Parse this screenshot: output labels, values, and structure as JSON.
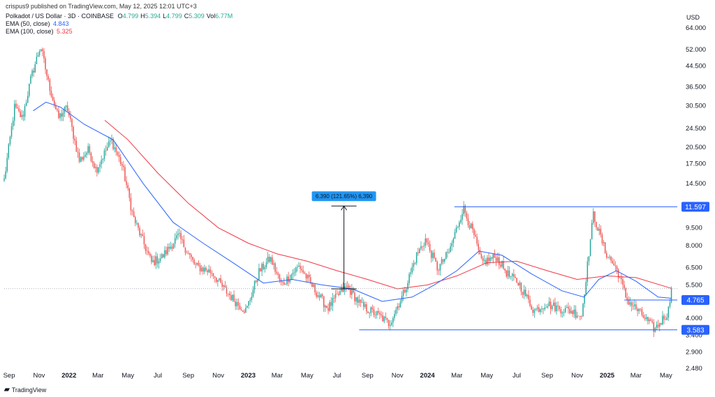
{
  "header": {
    "publisher": "crispus9 published on TradingView.com, May 12, 2025 12:01 UTC+3",
    "symbol": "Polkadot / US Dollar · 3D · COINBASE",
    "ohlc": [
      {
        "label": "O",
        "value": "4.799"
      },
      {
        "label": "H",
        "value": "5.394"
      },
      {
        "label": "L",
        "value": "4.799"
      },
      {
        "label": "C",
        "value": "5.309"
      },
      {
        "label": "Vol",
        "value": "6.77M"
      }
    ],
    "ema50_label": "EMA (50, close)",
    "ema50_value": "4.843",
    "ema100_label": "EMA (100, close)",
    "ema100_value": "5.325",
    "currency": "USD"
  },
  "footer": {
    "logo_text": "TradingView"
  },
  "colors": {
    "up": "#26a69a",
    "down": "#ef5350",
    "ema50": "#2962ff",
    "ema100": "#f23645",
    "hline": "#2962ff",
    "tag": "#2962ff",
    "measure_tag": "#2196f3"
  },
  "chart_data": {
    "type": "candlestick",
    "y_scale": "log",
    "ylim": [
      2.48,
      64.0
    ],
    "y_ticks": [
      "64.000",
      "52.000",
      "44.500",
      "36.500",
      "30.500",
      "24.500",
      "20.500",
      "17.500",
      "14.500",
      "9.500",
      "8.000",
      "6.500",
      "5.500",
      "4.000",
      "3.400",
      "2.900",
      "2.480"
    ],
    "x_ticks": [
      "Sep",
      "Nov",
      "2022",
      "Mar",
      "May",
      "Jul",
      "Sep",
      "Nov",
      "2023",
      "Mar",
      "May",
      "Jul",
      "Sep",
      "Nov",
      "2024",
      "Mar",
      "May",
      "Jul",
      "Sep",
      "Nov",
      "2025",
      "Mar",
      "May"
    ],
    "x_range": [
      "2021-08-22",
      "2025-05-24"
    ],
    "price_key_points": [
      [
        "2021-08-22",
        15.0
      ],
      [
        "2021-09-12",
        30.0
      ],
      [
        "2021-09-28",
        27.0
      ],
      [
        "2021-10-16",
        40.0
      ],
      [
        "2021-11-04",
        54.0
      ],
      [
        "2021-11-20",
        38.0
      ],
      [
        "2021-12-10",
        27.0
      ],
      [
        "2021-12-28",
        30.0
      ],
      [
        "2022-01-22",
        18.0
      ],
      [
        "2022-02-10",
        20.0
      ],
      [
        "2022-02-25",
        16.5
      ],
      [
        "2022-03-28",
        22.0
      ],
      [
        "2022-04-20",
        17.0
      ],
      [
        "2022-05-12",
        10.5
      ],
      [
        "2022-06-18",
        6.8
      ],
      [
        "2022-07-10",
        7.2
      ],
      [
        "2022-08-12",
        8.8
      ],
      [
        "2022-09-15",
        6.6
      ],
      [
        "2022-10-20",
        6.2
      ],
      [
        "2022-11-09",
        5.4
      ],
      [
        "2022-12-10",
        4.6
      ],
      [
        "2022-12-28",
        4.3
      ],
      [
        "2023-01-22",
        6.2
      ],
      [
        "2023-02-15",
        7.1
      ],
      [
        "2023-03-10",
        5.5
      ],
      [
        "2023-04-15",
        6.6
      ],
      [
        "2023-05-15",
        5.3
      ],
      [
        "2023-06-12",
        4.4
      ],
      [
        "2023-07-10",
        5.2
      ],
      [
        "2023-07-22",
        5.4
      ],
      [
        "2023-08-20",
        4.5
      ],
      [
        "2023-09-25",
        4.1
      ],
      [
        "2023-10-15",
        3.8
      ],
      [
        "2023-11-12",
        5.0
      ],
      [
        "2023-12-10",
        7.3
      ],
      [
        "2023-12-28",
        8.5
      ],
      [
        "2024-01-22",
        6.4
      ],
      [
        "2024-02-15",
        7.6
      ],
      [
        "2024-03-14",
        11.5
      ],
      [
        "2024-04-05",
        8.8
      ],
      [
        "2024-04-20",
        6.8
      ],
      [
        "2024-05-20",
        7.2
      ],
      [
        "2024-06-15",
        6.0
      ],
      [
        "2024-07-05",
        5.6
      ],
      [
        "2024-08-05",
        4.3
      ],
      [
        "2024-08-30",
        4.6
      ],
      [
        "2024-09-25",
        4.4
      ],
      [
        "2024-10-20",
        4.3
      ],
      [
        "2024-11-10",
        4.1
      ],
      [
        "2024-12-04",
        10.8
      ],
      [
        "2024-12-28",
        7.6
      ],
      [
        "2025-01-22",
        6.3
      ],
      [
        "2025-02-10",
        4.8
      ],
      [
        "2025-03-05",
        4.3
      ],
      [
        "2025-04-08",
        3.6
      ],
      [
        "2025-04-25",
        4.0
      ],
      [
        "2025-05-05",
        4.2
      ],
      [
        "2025-05-12",
        5.309
      ]
    ],
    "ema50_points": [
      [
        "2021-10-20",
        29.0
      ],
      [
        "2021-11-15",
        31.5
      ],
      [
        "2021-12-15",
        30.0
      ],
      [
        "2022-02-01",
        25.5
      ],
      [
        "2022-04-01",
        22.0
      ],
      [
        "2022-06-01",
        14.5
      ],
      [
        "2022-08-01",
        10.0
      ],
      [
        "2022-10-01",
        8.2
      ],
      [
        "2022-12-01",
        6.8
      ],
      [
        "2023-02-01",
        5.6
      ],
      [
        "2023-04-01",
        5.8
      ],
      [
        "2023-06-01",
        5.5
      ],
      [
        "2023-08-01",
        5.3
      ],
      [
        "2023-10-01",
        4.7
      ],
      [
        "2023-12-01",
        4.9
      ],
      [
        "2024-01-15",
        5.5
      ],
      [
        "2024-03-01",
        6.3
      ],
      [
        "2024-04-15",
        7.6
      ],
      [
        "2024-06-01",
        7.3
      ],
      [
        "2024-08-01",
        6.1
      ],
      [
        "2024-10-01",
        5.2
      ],
      [
        "2024-11-15",
        4.9
      ],
      [
        "2024-12-15",
        5.8
      ],
      [
        "2025-01-20",
        6.3
      ],
      [
        "2025-03-01",
        5.7
      ],
      [
        "2025-04-15",
        4.9
      ],
      [
        "2025-05-12",
        4.843
      ]
    ],
    "ema100_points": [
      [
        "2022-03-15",
        26.5
      ],
      [
        "2022-05-01",
        22.0
      ],
      [
        "2022-07-01",
        16.0
      ],
      [
        "2022-09-01",
        12.0
      ],
      [
        "2022-11-01",
        9.5
      ],
      [
        "2023-01-01",
        8.2
      ],
      [
        "2023-03-01",
        7.4
      ],
      [
        "2023-05-01",
        6.9
      ],
      [
        "2023-07-01",
        6.3
      ],
      [
        "2023-09-01",
        5.8
      ],
      [
        "2023-11-01",
        5.3
      ],
      [
        "2024-01-01",
        5.5
      ],
      [
        "2024-03-01",
        6.0
      ],
      [
        "2024-05-01",
        6.8
      ],
      [
        "2024-07-01",
        6.9
      ],
      [
        "2024-09-01",
        6.3
      ],
      [
        "2024-11-01",
        5.8
      ],
      [
        "2025-01-01",
        6.0
      ],
      [
        "2025-03-01",
        5.9
      ],
      [
        "2025-05-12",
        5.325
      ]
    ],
    "horizontal_levels": [
      {
        "price": 11.597,
        "label": "11.597",
        "from": "2024-02-25",
        "to": "2025-05-24"
      },
      {
        "price": 4.765,
        "label": "4.765",
        "from": "2025-02-05",
        "to": "2025-05-24"
      },
      {
        "price": 3.583,
        "label": "3.583",
        "from": "2023-08-15",
        "to": "2025-05-24"
      }
    ],
    "current_price": 5.309,
    "measure": {
      "date": "2023-07-15",
      "from_price": 5.3,
      "to_price": 11.69,
      "label": "6.390 (121.65%) 6,390"
    }
  }
}
